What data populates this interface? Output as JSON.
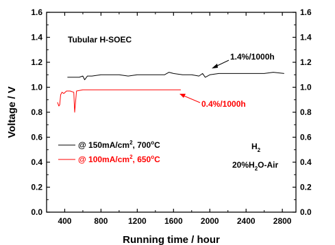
{
  "colors": {
    "black_series": "#000000",
    "red_series": "#ff0000",
    "axes": "#000000"
  },
  "chart_data": {
    "type": "line",
    "xlabel": "Running time / hour",
    "ylabel": "Voltage / V",
    "xlim": [
      200,
      2950
    ],
    "ylim": [
      0.0,
      1.6
    ],
    "xticks": [
      400,
      800,
      1200,
      1600,
      2000,
      2400,
      2800
    ],
    "yticks": [
      0.0,
      0.2,
      0.4,
      0.6,
      0.8,
      1.0,
      1.2,
      1.4,
      1.6
    ],
    "xtick_labels": [
      "400",
      "800",
      "1200",
      "1600",
      "2000",
      "2400",
      "2800"
    ],
    "ytick_labels": [
      "0.0",
      "0.2",
      "0.4",
      "0.6",
      "0.8",
      "1.0",
      "1.2",
      "1.4",
      "1.6"
    ],
    "right_axis_mirrors_left": true,
    "grid": false,
    "legend_position": "lower-left",
    "series": [
      {
        "name": "@ 150mA/cm², 700°C",
        "color": "#000000",
        "x": [
          430,
          500,
          560,
          600,
          620,
          650,
          700,
          800,
          900,
          1000,
          1100,
          1200,
          1300,
          1400,
          1500,
          1550,
          1600,
          1700,
          1800,
          1880,
          1920,
          1950,
          2000,
          2100,
          2200,
          2300,
          2400,
          2500,
          2600,
          2700,
          2820
        ],
        "y": [
          1.08,
          1.08,
          1.08,
          1.09,
          1.06,
          1.09,
          1.09,
          1.1,
          1.1,
          1.1,
          1.09,
          1.1,
          1.1,
          1.1,
          1.1,
          1.12,
          1.11,
          1.1,
          1.1,
          1.09,
          1.11,
          1.08,
          1.1,
          1.11,
          1.11,
          1.11,
          1.11,
          1.11,
          1.11,
          1.12,
          1.11
        ]
      },
      {
        "name": "@ 100mA/cm², 650°C",
        "color": "#ff0000",
        "x": [
          320,
          335,
          345,
          355,
          370,
          390,
          420,
          460,
          500,
          510,
          530,
          600,
          700,
          800,
          900,
          1000,
          1100,
          1200,
          1300,
          1400,
          1500,
          1600,
          1680
        ],
        "y": [
          0.88,
          0.85,
          0.86,
          0.94,
          0.96,
          0.95,
          0.97,
          0.97,
          0.96,
          0.8,
          0.97,
          0.98,
          0.98,
          0.98,
          0.98,
          0.98,
          0.98,
          0.98,
          0.98,
          0.98,
          0.98,
          0.98,
          0.98
        ]
      }
    ],
    "annotations": {
      "title_text": "Tubular H-SOEC",
      "black_rate": "1.4%/1000h",
      "red_rate": "0.4%/1000h",
      "gas_h2": "H",
      "gas_h2_sub": "2",
      "gas_air_a": "20%H",
      "gas_air_sub": "2",
      "gas_air_b": "O-Air"
    },
    "legend": {
      "black_a": "@ 150mA/cm",
      "black_sup": "2",
      "black_b": ", 700",
      "black_deg": "o",
      "black_c": "C",
      "red_a": "@ 100mA/cm",
      "red_sup": "2",
      "red_b": ", 650",
      "red_deg": "o",
      "red_c": "C"
    }
  }
}
